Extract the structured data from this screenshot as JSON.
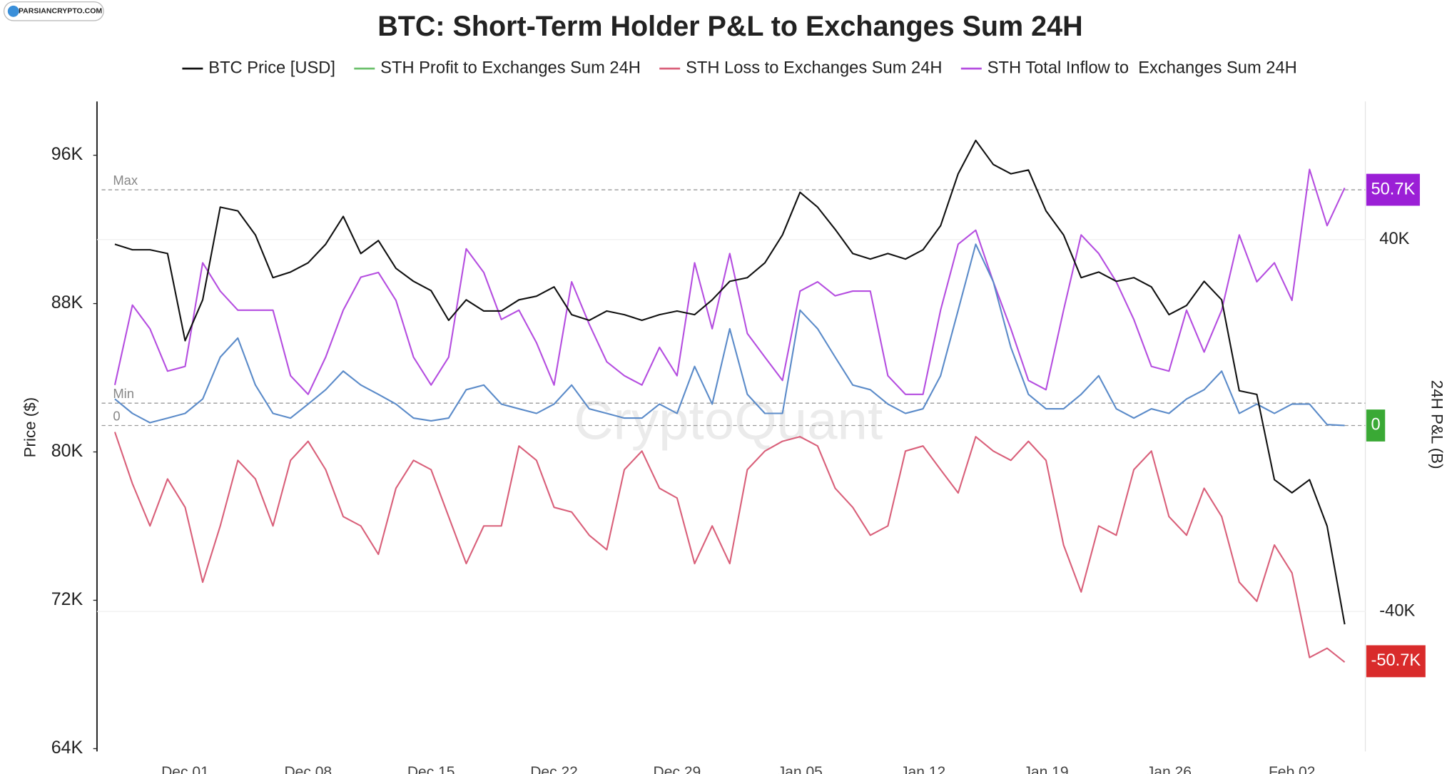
{
  "chart_data": {
    "type": "line",
    "title": "BTC: Short-Term Holder P&L to Exchanges Sum 24H",
    "source_badge": "PARSIANCRYPTO.COM",
    "watermark": "CryptoQuant",
    "ylabel": "Price ($)",
    "y2label": "24H P&L (B)",
    "categories": [
      null,
      null,
      null,
      null,
      "Dec 01",
      null,
      null,
      null,
      null,
      null,
      null,
      "Dec 08",
      null,
      null,
      null,
      null,
      null,
      null,
      "Dec 15",
      null,
      null,
      null,
      null,
      null,
      null,
      "Dec 22",
      null,
      null,
      null,
      null,
      null,
      null,
      "Dec 29",
      null,
      null,
      null,
      null,
      null,
      null,
      "Jan 05",
      null,
      null,
      null,
      null,
      null,
      null,
      "Jan 12",
      null,
      null,
      null,
      null,
      null,
      null,
      "Jan 19",
      null,
      null,
      null,
      null,
      null,
      null,
      "Jan 26",
      null,
      null,
      null,
      null,
      null,
      null,
      "Feb 02",
      null,
      null,
      null
    ],
    "ylim": [
      64000,
      98900
    ],
    "yticks": [
      {
        "value": 64000,
        "label": "64K"
      },
      {
        "value": 72000,
        "label": "72K"
      },
      {
        "value": 80000,
        "label": "80K"
      },
      {
        "value": 88000,
        "label": "88K"
      },
      {
        "value": 96000,
        "label": "96K"
      }
    ],
    "y2lim": [
      -69500,
      69700
    ],
    "y2ticks": [
      {
        "value": -40000,
        "label": "-40K"
      },
      {
        "value": 40000,
        "label": "40K"
      }
    ],
    "reference_lines": [
      {
        "label": "Max",
        "value": 50700
      },
      {
        "label": "Min",
        "value": 4800
      },
      {
        "label": "0",
        "value": 0
      }
    ],
    "badges": [
      {
        "value": 50700,
        "label": "50.7K",
        "color": "#9b1fd6"
      },
      {
        "value": 0,
        "label": "0",
        "color": "#3aa935"
      },
      {
        "value": -50700,
        "label": "-50.7K",
        "color": "#d92b2b"
      }
    ],
    "series": [
      {
        "name": "BTC Price [USD]",
        "color": "#111111",
        "values": [
          91200,
          90900,
          90900,
          90700,
          86000,
          88200,
          93200,
          93000,
          91700,
          89400,
          89700,
          90200,
          91200,
          92700,
          90700,
          91400,
          89900,
          89200,
          88700,
          87100,
          88200,
          87600,
          87600,
          88200,
          88400,
          88900,
          87400,
          87100,
          87600,
          87400,
          87100,
          87400,
          87600,
          87400,
          88200,
          89200,
          89400,
          90200,
          91700,
          94000,
          93200,
          92000,
          90700,
          90400,
          90700,
          90400,
          90900,
          92200,
          95000,
          96800,
          95500,
          95000,
          95200,
          93000,
          91700,
          89400,
          89700,
          89200,
          89400,
          88900,
          87400,
          87900,
          89200,
          88200,
          83300,
          83100,
          78500,
          77800,
          78500,
          76000,
          70700
        ]
      },
      {
        "name": "STH Profit to Exchanges Sum 24H",
        "color": "#6cc06c",
        "line_color": "#5b8bc9",
        "axis": "y2",
        "values": [
          5700,
          2600,
          600,
          1600,
          2600,
          5700,
          14700,
          18800,
          8700,
          2600,
          1600,
          4600,
          7700,
          11700,
          8700,
          6700,
          4600,
          1600,
          1000,
          1600,
          7700,
          8700,
          4600,
          3600,
          2600,
          4600,
          8700,
          3600,
          2600,
          1600,
          1600,
          4600,
          2600,
          12700,
          4600,
          20800,
          6700,
          2600,
          2600,
          24800,
          20800,
          14700,
          8700,
          7700,
          4600,
          2600,
          3600,
          10700,
          24800,
          39000,
          30900,
          16800,
          6700,
          3600,
          3600,
          6700,
          10700,
          3600,
          1600,
          3600,
          2600,
          5700,
          7700,
          11700,
          2600,
          4600,
          2600,
          4600,
          4600,
          200,
          0
        ]
      },
      {
        "name": "STH Loss to Exchanges Sum 24H",
        "color": "#d9607a",
        "axis": "y2",
        "values": [
          -1400,
          -12500,
          -21600,
          -11500,
          -17600,
          -33700,
          -21600,
          -7500,
          -11500,
          -21600,
          -7500,
          -3400,
          -9500,
          -19600,
          -21600,
          -27700,
          -13500,
          -7500,
          -9500,
          -19600,
          -29700,
          -21600,
          -21600,
          -4400,
          -7500,
          -17600,
          -18600,
          -23600,
          -26700,
          -9500,
          -5500,
          -13500,
          -15600,
          -29700,
          -21600,
          -29700,
          -9500,
          -5500,
          -3400,
          -2400,
          -4400,
          -13500,
          -17600,
          -23600,
          -21600,
          -5500,
          -4400,
          -9500,
          -14500,
          -2400,
          -5500,
          -7500,
          -3400,
          -7500,
          -25700,
          -35800,
          -21600,
          -23600,
          -9500,
          -5500,
          -19600,
          -23600,
          -13500,
          -19600,
          -33700,
          -37800,
          -25700,
          -31700,
          -49900,
          -47900,
          -50900
        ]
      },
      {
        "name": "STH Total Inflow to  Exchanges Sum 24H",
        "color": "#b54ee0",
        "axis": "y2",
        "values": [
          8700,
          25900,
          20800,
          11700,
          12700,
          35000,
          28900,
          24800,
          24800,
          24800,
          10700,
          6700,
          14700,
          24800,
          31900,
          32900,
          26900,
          14700,
          8700,
          14700,
          38000,
          32900,
          22800,
          24800,
          17800,
          8700,
          30900,
          21800,
          13700,
          10700,
          8700,
          16800,
          10700,
          35000,
          20800,
          37000,
          19800,
          14700,
          9700,
          28900,
          30900,
          27900,
          28900,
          28900,
          10700,
          6700,
          6700,
          24800,
          39000,
          42000,
          30900,
          20800,
          9700,
          7700,
          24800,
          41000,
          37000,
          30900,
          22800,
          12700,
          11700,
          24800,
          15800,
          24800,
          41000,
          30900,
          35000,
          26900,
          55100,
          43000,
          51100
        ]
      }
    ]
  }
}
